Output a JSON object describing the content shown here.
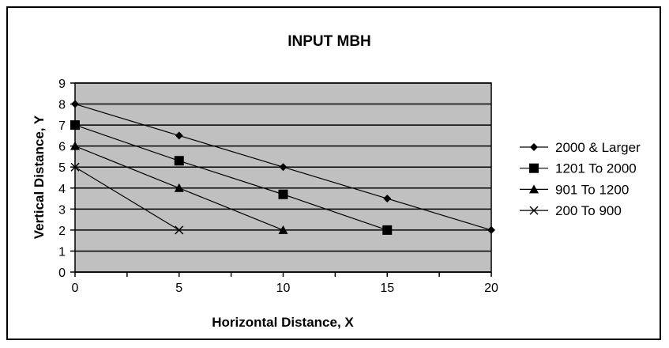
{
  "chart_data": {
    "type": "line",
    "title": "INPUT MBH",
    "xlabel": "Horizontal Distance, X",
    "ylabel": "Vertical Distance, Y",
    "xlim": [
      0,
      20
    ],
    "ylim": [
      0,
      9
    ],
    "x_ticks": [
      "0",
      "5",
      "10",
      "15",
      "20"
    ],
    "y_ticks": [
      "0",
      "1",
      "2",
      "3",
      "4",
      "5",
      "6",
      "7",
      "8",
      "9"
    ],
    "grid": "horizontal",
    "plot_background": "#c0c0c0",
    "legend_position": "right",
    "series": [
      {
        "name": "2000 & Larger",
        "marker": "diamond",
        "x": [
          0,
          5,
          10,
          15,
          20
        ],
        "y": [
          8,
          6.5,
          5,
          3.5,
          2
        ]
      },
      {
        "name": "1201 To 2000",
        "marker": "square",
        "x": [
          0,
          5,
          10,
          15
        ],
        "y": [
          7,
          5.3,
          3.7,
          2
        ]
      },
      {
        "name": "901 To 1200",
        "marker": "triangle",
        "x": [
          0,
          5,
          10
        ],
        "y": [
          6,
          4,
          2
        ]
      },
      {
        "name": "200 To 900",
        "marker": "x",
        "x": [
          0,
          5
        ],
        "y": [
          5,
          2
        ]
      }
    ]
  }
}
